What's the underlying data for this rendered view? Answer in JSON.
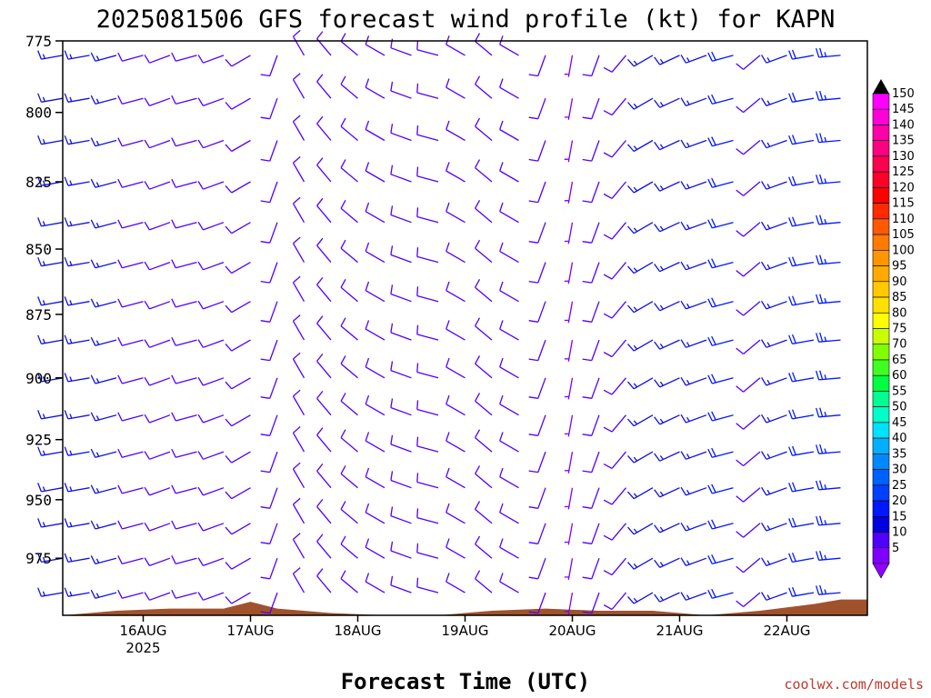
{
  "chart_data": {
    "type": "wind-barb-profile",
    "title": "2025081506 GFS forecast wind profile (kt) for KAPN",
    "xlabel": "Forecast Time (UTC)",
    "credit": "coolwx.com/models",
    "credit_color": "#c0392b",
    "y_axis": {
      "label": "",
      "scale": "log",
      "range": [
        775,
        1000
      ],
      "ticks": [
        "775",
        "800",
        "825",
        "850",
        "875",
        "900",
        "925",
        "950",
        "975"
      ]
    },
    "x_axis": {
      "range": [
        "2025-08-15 06:00",
        "2025-08-22 18:00"
      ],
      "ticks": [
        {
          "label": "16AUG",
          "sub": "2025"
        },
        {
          "label": "17AUG",
          "sub": ""
        },
        {
          "label": "18AUG",
          "sub": ""
        },
        {
          "label": "19AUG",
          "sub": ""
        },
        {
          "label": "20AUG",
          "sub": ""
        },
        {
          "label": "21AUG",
          "sub": ""
        },
        {
          "label": "22AUG",
          "sub": ""
        }
      ]
    },
    "levels_hpa": [
      780,
      795,
      810,
      825,
      840,
      855,
      870,
      885,
      900,
      915,
      930,
      945,
      960,
      975,
      990
    ],
    "times_hours": [
      0,
      6,
      12,
      18,
      24,
      30,
      36,
      42,
      48,
      54,
      60,
      66,
      72,
      78,
      84,
      90,
      96,
      102,
      108,
      114,
      120,
      126,
      132,
      138,
      144,
      150,
      156,
      162,
      168,
      174
    ],
    "wind_barbs": [
      {
        "t": 0,
        "from_deg": 260,
        "kt": 15
      },
      {
        "t": 6,
        "from_deg": 260,
        "kt": 15
      },
      {
        "t": 12,
        "from_deg": 255,
        "kt": 15
      },
      {
        "t": 18,
        "from_deg": 255,
        "kt": 10
      },
      {
        "t": 24,
        "from_deg": 250,
        "kt": 10
      },
      {
        "t": 30,
        "from_deg": 255,
        "kt": 10
      },
      {
        "t": 36,
        "from_deg": 250,
        "kt": 10
      },
      {
        "t": 42,
        "from_deg": 240,
        "kt": 10
      },
      {
        "t": 48,
        "from_deg": 200,
        "kt": 10
      },
      {
        "t": 54,
        "from_deg": 330,
        "kt": 10
      },
      {
        "t": 60,
        "from_deg": 320,
        "kt": 10
      },
      {
        "t": 66,
        "from_deg": 310,
        "kt": 10
      },
      {
        "t": 72,
        "from_deg": 300,
        "kt": 10
      },
      {
        "t": 78,
        "from_deg": 290,
        "kt": 10
      },
      {
        "t": 84,
        "from_deg": 285,
        "kt": 10
      },
      {
        "t": 90,
        "from_deg": 300,
        "kt": 10
      },
      {
        "t": 96,
        "from_deg": 310,
        "kt": 10
      },
      {
        "t": 102,
        "from_deg": 300,
        "kt": 10
      },
      {
        "t": 108,
        "from_deg": 200,
        "kt": 10
      },
      {
        "t": 114,
        "from_deg": 190,
        "kt": 5
      },
      {
        "t": 120,
        "from_deg": 200,
        "kt": 10
      },
      {
        "t": 126,
        "from_deg": 220,
        "kt": 10
      },
      {
        "t": 132,
        "from_deg": 240,
        "kt": 15
      },
      {
        "t": 138,
        "from_deg": 245,
        "kt": 15
      },
      {
        "t": 144,
        "from_deg": 250,
        "kt": 15
      },
      {
        "t": 150,
        "from_deg": 255,
        "kt": 20
      },
      {
        "t": 156,
        "from_deg": 230,
        "kt": 10
      },
      {
        "t": 162,
        "from_deg": 250,
        "kt": 15
      },
      {
        "t": 168,
        "from_deg": 260,
        "kt": 20
      },
      {
        "t": 174,
        "from_deg": 265,
        "kt": 25
      }
    ],
    "terrain_surface_hpa": [
      {
        "t": 0,
        "p": 1000
      },
      {
        "t": 12,
        "p": 998
      },
      {
        "t": 24,
        "p": 997
      },
      {
        "t": 36,
        "p": 997
      },
      {
        "t": 42,
        "p": 994
      },
      {
        "t": 48,
        "p": 997
      },
      {
        "t": 60,
        "p": 999
      },
      {
        "t": 72,
        "p": 1000
      },
      {
        "t": 84,
        "p": 1001
      },
      {
        "t": 96,
        "p": 998
      },
      {
        "t": 108,
        "p": 997
      },
      {
        "t": 120,
        "p": 998
      },
      {
        "t": 132,
        "p": 998
      },
      {
        "t": 144,
        "p": 1000
      },
      {
        "t": 156,
        "p": 998
      },
      {
        "t": 168,
        "p": 995
      },
      {
        "t": 174,
        "p": 993
      }
    ],
    "terrain_color": "#a0522d",
    "colorbar": {
      "unit": "kt",
      "levels": [
        "150",
        "145",
        "140",
        "135",
        "130",
        "125",
        "120",
        "115",
        "110",
        "105",
        "100",
        "95",
        "90",
        "85",
        "80",
        "75",
        "70",
        "65",
        "60",
        "55",
        "50",
        "45",
        "40",
        "35",
        "30",
        "25",
        "20",
        "15",
        "10",
        "5"
      ],
      "colors": [
        "#ff00ff",
        "#ff00d8",
        "#ff00a8",
        "#ff0080",
        "#ff0050",
        "#ff0028",
        "#ff0000",
        "#ff2a00",
        "#ff5a00",
        "#ff7a00",
        "#ff9600",
        "#ffaa00",
        "#ffc800",
        "#ffe000",
        "#ffff00",
        "#c8ff00",
        "#80ff00",
        "#40ff20",
        "#00ff40",
        "#00ff90",
        "#00ffc8",
        "#00e0ff",
        "#00b0ff",
        "#0088ff",
        "#0060ff",
        "#0040ff",
        "#0018ff",
        "#0000e0",
        "#5000ff",
        "#8000ff"
      ],
      "top_arrow_color": "#000000",
      "bottom_arrow_color": "#9000ff"
    }
  }
}
